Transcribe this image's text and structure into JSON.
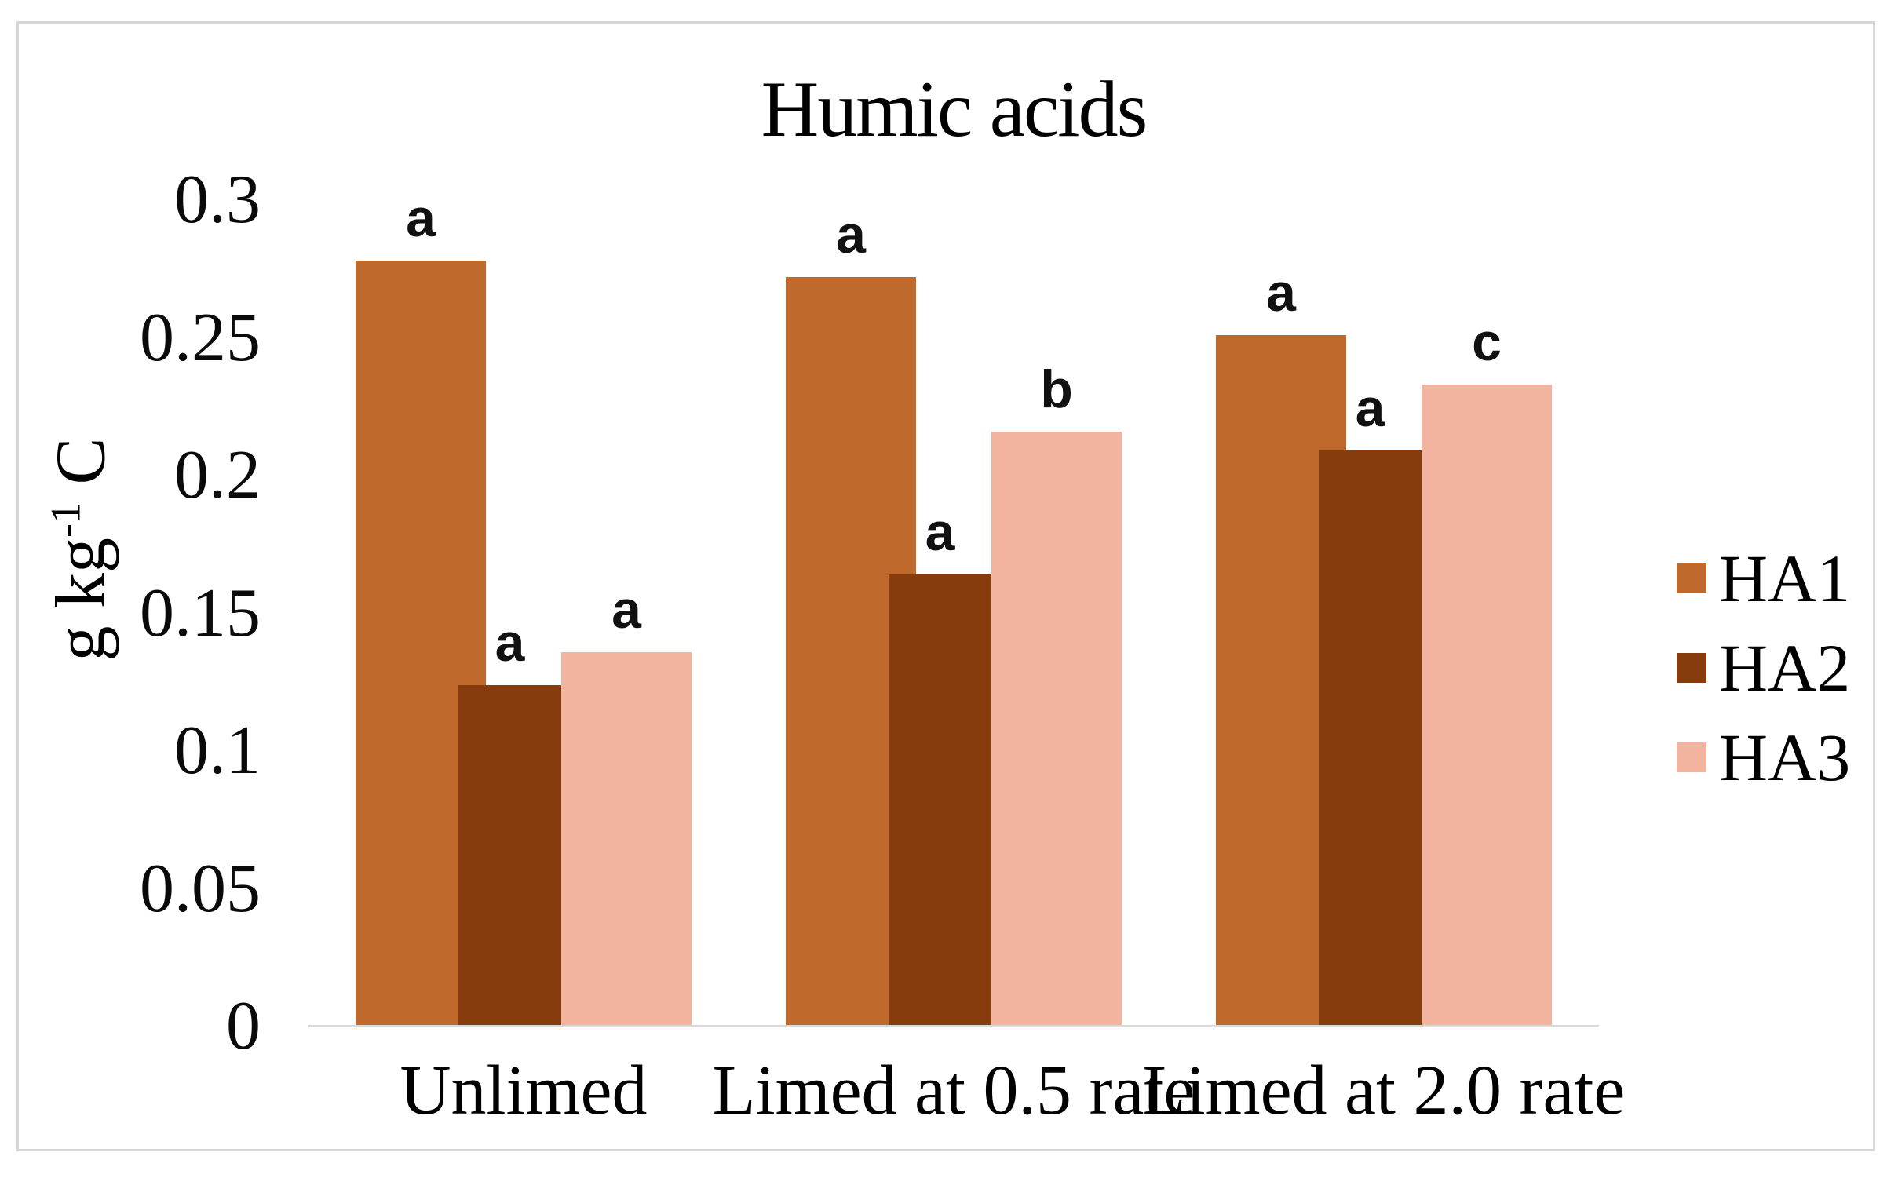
{
  "figure": {
    "background_color": "#ffffff",
    "border_color": "#d6d6d6"
  },
  "chart_data": {
    "type": "bar",
    "title": "Humic acids",
    "ylabel_text": "g kg-1 C",
    "ylabel_parts": {
      "main": "g kg",
      "sup": "-1",
      "end": " C"
    },
    "xlabel": "",
    "categories": [
      "Unlimed",
      "Limed at 0.5 rate",
      "Limed at 2.0 rate"
    ],
    "series": [
      {
        "name": "HA1",
        "color": "#c0692d",
        "values": [
          0.278,
          0.272,
          0.251
        ],
        "sig_letters": [
          "a",
          "a",
          "a"
        ]
      },
      {
        "name": "HA2",
        "color": "#873c0d",
        "values": [
          0.124,
          0.164,
          0.209
        ],
        "sig_letters": [
          "a",
          "a",
          "a"
        ]
      },
      {
        "name": "HA3",
        "color": "#f2b49e",
        "values": [
          0.136,
          0.216,
          0.233
        ],
        "sig_letters": [
          "a",
          "b",
          "c"
        ]
      }
    ],
    "y_axis": {
      "min": 0,
      "max": 0.3,
      "tick_step": 0.05,
      "tick_labels": [
        "0",
        "0.05",
        "0.1",
        "0.15",
        "0.2",
        "0.25",
        "0.3"
      ]
    },
    "grid": false,
    "legend_position": "right",
    "axis_line_color": "#d9d9d9",
    "sig_letter_color": "#111111"
  }
}
